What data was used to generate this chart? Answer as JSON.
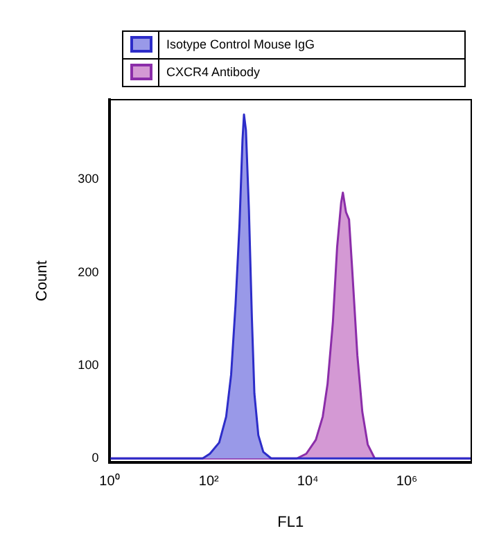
{
  "chart_data": {
    "type": "area",
    "xlabel": "FL1",
    "ylabel": "Count",
    "log": "x",
    "legend": "top",
    "marker": "none",
    "xlim": [
      1,
      20000000
    ],
    "xticks": [
      {
        "value": 1,
        "label": "10⁰"
      },
      {
        "value": 100,
        "label": "10²"
      },
      {
        "value": 10000,
        "label": "10⁴"
      },
      {
        "value": 1000000,
        "label": "10⁶"
      }
    ],
    "ylim": [
      -4,
      386
    ],
    "yticks": [
      0,
      100,
      200,
      300
    ],
    "series": [
      {
        "name": "Isotype Control Mouse IgG",
        "color": "#9999e8",
        "x": [
          1,
          75,
          105,
          162,
          224,
          282,
          347,
          417,
          479,
          513,
          562,
          646,
          741,
          832,
          1000,
          1259,
          1820,
          20000000
        ],
        "values": [
          0,
          0,
          5,
          17,
          45,
          90,
          166,
          252,
          343,
          370,
          353,
          267,
          151,
          70,
          25,
          7,
          0,
          0
        ]
      },
      {
        "name": "CXCR4 Antibody",
        "color": "#d499d4",
        "x": [
          1,
          6000,
          9300,
          14500,
          20000,
          25000,
          32000,
          39000,
          47000,
          51000,
          59000,
          68000,
          79000,
          100000,
          126000,
          162000,
          224000,
          20000000
        ],
        "values": [
          0,
          0,
          5,
          20,
          45,
          80,
          146,
          227,
          275,
          286,
          265,
          257,
          202,
          111,
          50,
          15,
          0,
          0
        ]
      }
    ]
  }
}
